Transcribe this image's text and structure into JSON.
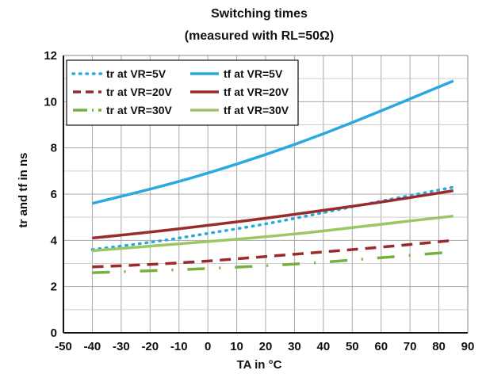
{
  "chart_data": {
    "type": "line",
    "title": "Switching times",
    "subtitle": "(measured with RL=50Ω)",
    "xlabel": "TA in °C",
    "ylabel": "tr and tf in ns",
    "xlim": [
      -50,
      90
    ],
    "ylim": [
      0,
      12
    ],
    "xticks": [
      -50,
      -40,
      -30,
      -20,
      -10,
      0,
      10,
      20,
      30,
      40,
      50,
      60,
      70,
      80,
      90
    ],
    "yticks": [
      0,
      2,
      4,
      6,
      8,
      10,
      12
    ],
    "grid": true,
    "legend_position": "top-left",
    "series": [
      {
        "name": "tr at VR=5V",
        "color": "#29a9e0",
        "style": "dotted",
        "x": [
          -40,
          -20,
          0,
          20,
          40,
          60,
          85
        ],
        "y": [
          3.6,
          3.9,
          4.3,
          4.7,
          5.2,
          5.7,
          6.3
        ]
      },
      {
        "name": "tf at VR=5V",
        "color": "#29a9e0",
        "style": "solid",
        "x": [
          -40,
          -20,
          0,
          20,
          40,
          60,
          85
        ],
        "y": [
          5.6,
          6.2,
          6.9,
          7.7,
          8.6,
          9.6,
          10.9
        ]
      },
      {
        "name": "tr at VR=20V",
        "color": "#9b2b2b",
        "style": "dashed",
        "x": [
          -40,
          -20,
          0,
          20,
          40,
          60,
          85
        ],
        "y": [
          2.85,
          2.95,
          3.1,
          3.3,
          3.5,
          3.7,
          4.0
        ]
      },
      {
        "name": "tf at VR=20V",
        "color": "#9b2b2b",
        "style": "solid",
        "x": [
          -40,
          -20,
          0,
          20,
          40,
          60,
          85
        ],
        "y": [
          4.1,
          4.35,
          4.65,
          4.95,
          5.3,
          5.65,
          6.15
        ]
      },
      {
        "name": "tr at VR=30V",
        "color": "#77b041",
        "style": "dashdot",
        "x": [
          -40,
          -20,
          0,
          20,
          40,
          60,
          85
        ],
        "y": [
          2.6,
          2.68,
          2.78,
          2.9,
          3.05,
          3.25,
          3.5
        ]
      },
      {
        "name": "tf at VR=30V",
        "color": "#9bc764",
        "style": "solid",
        "x": [
          -40,
          -20,
          0,
          20,
          40,
          60,
          85
        ],
        "y": [
          3.55,
          3.75,
          3.95,
          4.15,
          4.4,
          4.7,
          5.05
        ]
      }
    ],
    "legend": {
      "columns": [
        [
          "tr at VR=5V",
          "tr at VR=20V",
          "tr at VR=30V"
        ],
        [
          "tf at VR=5V",
          "tf at VR=20V",
          "tf at VR=30V"
        ]
      ]
    }
  }
}
